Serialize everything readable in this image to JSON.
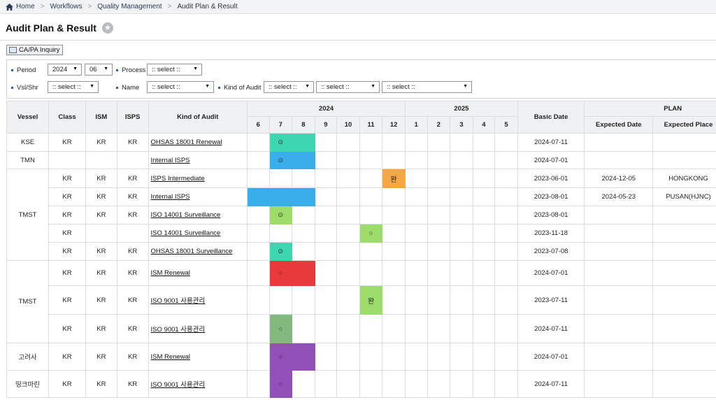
{
  "breadcrumb": {
    "home": "Home",
    "items": [
      "Workflows",
      "Quality Management",
      "Audit Plan & Result"
    ]
  },
  "page": {
    "title": "Audit Plan & Result"
  },
  "toolbar": {
    "capa_label": "CA/PA Inquiry"
  },
  "filters": {
    "period_label": "Period",
    "period_year": "2024",
    "period_month": "06",
    "process_label": "Process",
    "process_value": ":: select ::",
    "vsl_label": "Vsl/Shr",
    "vsl_value": ":: select ::",
    "name_label": "Name",
    "name_value": ":: select ::",
    "kind_label": "Kind of Audit",
    "kind_value1": ":: select ::",
    "kind_value2": ":: select ::",
    "kind_value3": ":: select ::"
  },
  "grid": {
    "headers": {
      "vessel": "Vessel",
      "class": "Class",
      "ism": "ISM",
      "isps": "ISPS",
      "kind": "Kind of Audit",
      "year1": "2024",
      "year2": "2025",
      "basic_date": "Basic Date",
      "plan": "PLAN",
      "expected_date": "Expected Date",
      "expected_place": "Expected Place"
    },
    "months_2024": [
      "6",
      "7",
      "8",
      "9",
      "10",
      "11",
      "12"
    ],
    "months_2025": [
      "1",
      "2",
      "3",
      "4",
      "5"
    ],
    "colors": {
      "teal": "#3dd6b0",
      "blue": "#3aaeea",
      "orange": "#f4a742",
      "green": "#9bdc6a",
      "red": "#e8393b",
      "sage": "#82b97e",
      "purple": "#9150b8"
    },
    "groups": [
      {
        "vessel": "KSE",
        "rows": [
          {
            "class": "KR",
            "ism": "KR",
            "isps": "KR",
            "kind": "OHSAS 18001 Renewal",
            "basic_date": "2024-07-11",
            "expected_date": "",
            "expected_place": "",
            "cells": [
              {
                "month": 7,
                "color": "teal",
                "mark": "⊙"
              },
              {
                "month": 8,
                "color": "teal",
                "mark": ""
              }
            ]
          }
        ]
      },
      {
        "vessel": "TMN",
        "rows": [
          {
            "class": "",
            "ism": "",
            "isps": "",
            "kind": "Internal ISPS",
            "basic_date": "2024-07-01",
            "expected_date": "",
            "expected_place": "",
            "cells": [
              {
                "month": 7,
                "color": "blue",
                "mark": "⊙"
              },
              {
                "month": 8,
                "color": "blue",
                "mark": ""
              }
            ]
          }
        ]
      },
      {
        "vessel": "TMST",
        "rows": [
          {
            "class": "KR",
            "ism": "KR",
            "isps": "KR",
            "kind": "ISPS Intermediate",
            "basic_date": "2023-06-01",
            "expected_date": "2024-12-05",
            "expected_place": "HONGKONG",
            "cells": [
              {
                "month": 12,
                "color": "orange",
                "mark": "완"
              }
            ]
          },
          {
            "class": "KR",
            "ism": "KR",
            "isps": "KR",
            "kind": "Internal ISPS",
            "basic_date": "2023-08-01",
            "expected_date": "2024-05-23",
            "expected_place": "PUSAN(HJNC)",
            "cells": [
              {
                "month": 6,
                "color": "blue",
                "mark": ""
              },
              {
                "month": 7,
                "color": "blue",
                "mark": ""
              },
              {
                "month": 8,
                "color": "blue",
                "mark": ""
              }
            ]
          },
          {
            "class": "KR",
            "ism": "KR",
            "isps": "KR",
            "kind": "ISO 14001 Surveillance",
            "basic_date": "2023-08-01",
            "expected_date": "",
            "expected_place": "",
            "cells": [
              {
                "month": 7,
                "color": "green",
                "mark": "⊙"
              }
            ]
          },
          {
            "class": "KR",
            "ism": "",
            "isps": "",
            "kind": "ISO 14001 Surveillance",
            "basic_date": "2023-11-18",
            "expected_date": "",
            "expected_place": "",
            "cells": [
              {
                "month": 11,
                "color": "green",
                "mark": "○"
              }
            ]
          },
          {
            "class": "KR",
            "ism": "KR",
            "isps": "KR",
            "kind": "OHSAS 18001 Surveillance",
            "basic_date": "2023-07-08",
            "expected_date": "",
            "expected_place": "",
            "cells": [
              {
                "month": 7,
                "color": "teal",
                "mark": "⊙"
              }
            ]
          }
        ]
      },
      {
        "vessel": "TMST",
        "rows": [
          {
            "class": "KR",
            "ism": "KR",
            "isps": "KR",
            "kind": "ISM Renewal",
            "basic_date": "2024-07-01",
            "expected_date": "",
            "expected_place": "",
            "cells": [
              {
                "month": 7,
                "color": "red",
                "mark": "○"
              },
              {
                "month": 8,
                "color": "red",
                "mark": ""
              }
            ]
          },
          {
            "class": "KR",
            "ism": "KR",
            "isps": "KR",
            "kind": "ISO 9001 사용관리",
            "basic_date": "2023-07-11",
            "expected_date": "",
            "expected_place": "",
            "cells": [
              {
                "month": 11,
                "color": "green",
                "mark": "완"
              }
            ]
          },
          {
            "class": "KR",
            "ism": "KR",
            "isps": "KR",
            "kind": "ISO 9001 사용관리",
            "basic_date": "2024-07-11",
            "expected_date": "",
            "expected_place": "",
            "cells": [
              {
                "month": 7,
                "color": "sage",
                "mark": "○"
              }
            ]
          }
        ]
      },
      {
        "vessel": "고려사",
        "rows": [
          {
            "class": "KR",
            "ism": "KR",
            "isps": "KR",
            "kind": "ISM Renewal",
            "basic_date": "2024-07-01",
            "expected_date": "",
            "expected_place": "",
            "cells": [
              {
                "month": 7,
                "color": "purple",
                "mark": "○"
              },
              {
                "month": 8,
                "color": "purple",
                "mark": ""
              }
            ]
          }
        ]
      },
      {
        "vessel": "띵크마린",
        "rows": [
          {
            "class": "KR",
            "ism": "KR",
            "isps": "KR",
            "kind": "ISO 9001 사용관리",
            "basic_date": "2024-07-11",
            "expected_date": "",
            "expected_place": "",
            "cells": [
              {
                "month": 7,
                "color": "purple",
                "mark": "○"
              }
            ]
          }
        ]
      }
    ]
  }
}
